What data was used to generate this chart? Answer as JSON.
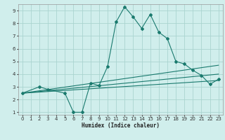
{
  "bg_color": "#d0eeec",
  "grid_color": "#aad4d0",
  "line_color": "#1a7a6e",
  "xlabel": "Humidex (Indice chaleur)",
  "xlim": [
    -0.5,
    23.5
  ],
  "ylim": [
    0.8,
    9.5
  ],
  "xticks": [
    0,
    1,
    2,
    3,
    4,
    5,
    6,
    7,
    8,
    9,
    10,
    11,
    12,
    13,
    14,
    15,
    16,
    17,
    18,
    19,
    20,
    21,
    22,
    23
  ],
  "yticks": [
    1,
    2,
    3,
    4,
    5,
    6,
    7,
    8,
    9
  ],
  "series": [
    [
      0,
      2.5
    ],
    [
      2,
      3.0
    ],
    [
      3,
      2.8
    ],
    [
      5,
      2.5
    ],
    [
      6,
      1.0
    ],
    [
      7,
      1.0
    ],
    [
      8,
      3.3
    ],
    [
      9,
      3.1
    ],
    [
      10,
      4.6
    ],
    [
      11,
      8.1
    ],
    [
      12,
      9.3
    ],
    [
      13,
      8.5
    ],
    [
      14,
      7.6
    ],
    [
      15,
      8.7
    ],
    [
      16,
      7.3
    ],
    [
      17,
      6.8
    ],
    [
      18,
      5.0
    ],
    [
      19,
      4.8
    ],
    [
      20,
      4.3
    ],
    [
      21,
      3.9
    ],
    [
      22,
      3.2
    ],
    [
      23,
      3.6
    ]
  ],
  "line2": [
    [
      0,
      2.5
    ],
    [
      23,
      3.5
    ]
  ],
  "line3": [
    [
      0,
      2.5
    ],
    [
      23,
      4.0
    ]
  ],
  "line4": [
    [
      0,
      2.5
    ],
    [
      23,
      4.7
    ]
  ]
}
